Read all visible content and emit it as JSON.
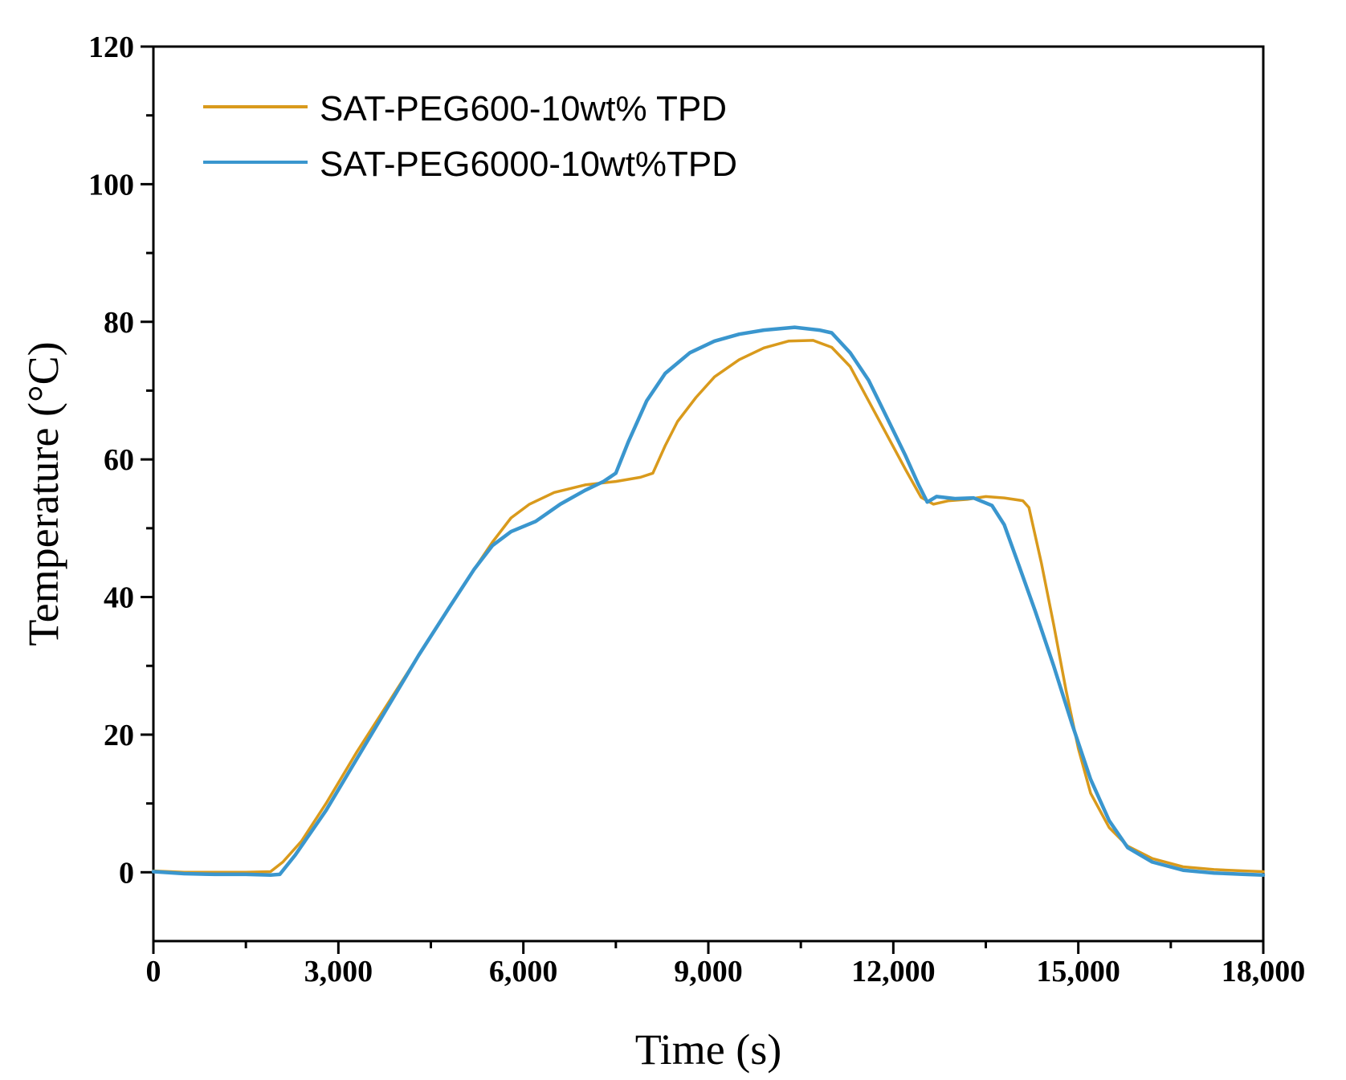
{
  "chart_data": {
    "type": "line",
    "xlabel": "Time (s)",
    "ylabel": "Temperature (°C)",
    "xlim": [
      0,
      18000
    ],
    "ylim": [
      -10,
      120
    ],
    "xticks": [
      0,
      3000,
      6000,
      9000,
      12000,
      15000,
      18000
    ],
    "xtick_labels": [
      "0",
      "3,000",
      "6,000",
      "9,000",
      "12,000",
      "15,000",
      "18,000"
    ],
    "yticks": [
      0,
      20,
      40,
      60,
      80,
      100,
      120
    ],
    "ytick_labels": [
      "0",
      "20",
      "40",
      "60",
      "80",
      "100",
      "120"
    ],
    "legend_position": "top-left",
    "series": [
      {
        "name": "SAT-PEG600-10wt% TPD",
        "color": "#D99A1C",
        "points": [
          [
            0,
            0.2
          ],
          [
            500,
            0.0
          ],
          [
            1000,
            0.0
          ],
          [
            1500,
            0.0
          ],
          [
            1900,
            0.1
          ],
          [
            2100,
            1.5
          ],
          [
            2400,
            4.5
          ],
          [
            2800,
            10.0
          ],
          [
            3300,
            17.5
          ],
          [
            3800,
            24.5
          ],
          [
            4300,
            31.5
          ],
          [
            4800,
            38.5
          ],
          [
            5200,
            44.0
          ],
          [
            5500,
            48.0
          ],
          [
            5800,
            51.5
          ],
          [
            6100,
            53.5
          ],
          [
            6500,
            55.2
          ],
          [
            7000,
            56.3
          ],
          [
            7500,
            56.8
          ],
          [
            7900,
            57.4
          ],
          [
            8100,
            58.0
          ],
          [
            8300,
            62.0
          ],
          [
            8500,
            65.5
          ],
          [
            8800,
            69.0
          ],
          [
            9100,
            72.0
          ],
          [
            9500,
            74.5
          ],
          [
            9900,
            76.2
          ],
          [
            10300,
            77.2
          ],
          [
            10700,
            77.3
          ],
          [
            11000,
            76.3
          ],
          [
            11300,
            73.5
          ],
          [
            11600,
            68.5
          ],
          [
            11900,
            63.5
          ],
          [
            12200,
            58.5
          ],
          [
            12450,
            54.5
          ],
          [
            12650,
            53.5
          ],
          [
            12900,
            54.0
          ],
          [
            13200,
            54.2
          ],
          [
            13500,
            54.6
          ],
          [
            13800,
            54.4
          ],
          [
            14100,
            54.0
          ],
          [
            14200,
            53.0
          ],
          [
            14400,
            45.0
          ],
          [
            14600,
            36.0
          ],
          [
            14800,
            26.5
          ],
          [
            15000,
            18.0
          ],
          [
            15200,
            11.5
          ],
          [
            15500,
            6.5
          ],
          [
            15800,
            3.8
          ],
          [
            16200,
            2.0
          ],
          [
            16700,
            0.8
          ],
          [
            17200,
            0.4
          ],
          [
            17700,
            0.2
          ],
          [
            18000,
            0.1
          ]
        ]
      },
      {
        "name": "SAT-PEG6000-10wt%TPD",
        "color": "#3A96CE",
        "points": [
          [
            0,
            0.1
          ],
          [
            500,
            -0.2
          ],
          [
            1000,
            -0.3
          ],
          [
            1500,
            -0.3
          ],
          [
            1900,
            -0.4
          ],
          [
            2050,
            -0.3
          ],
          [
            2300,
            2.5
          ],
          [
            2800,
            9.0
          ],
          [
            3300,
            16.5
          ],
          [
            3800,
            24.0
          ],
          [
            4300,
            31.5
          ],
          [
            4800,
            38.5
          ],
          [
            5200,
            44.0
          ],
          [
            5500,
            47.5
          ],
          [
            5800,
            49.5
          ],
          [
            6200,
            51.0
          ],
          [
            6600,
            53.5
          ],
          [
            7000,
            55.5
          ],
          [
            7300,
            56.8
          ],
          [
            7500,
            58.0
          ],
          [
            7700,
            62.5
          ],
          [
            8000,
            68.5
          ],
          [
            8300,
            72.5
          ],
          [
            8700,
            75.5
          ],
          [
            9100,
            77.2
          ],
          [
            9500,
            78.2
          ],
          [
            9900,
            78.8
          ],
          [
            10400,
            79.2
          ],
          [
            10800,
            78.8
          ],
          [
            11000,
            78.4
          ],
          [
            11300,
            75.5
          ],
          [
            11600,
            71.5
          ],
          [
            11900,
            66.0
          ],
          [
            12200,
            60.5
          ],
          [
            12400,
            56.5
          ],
          [
            12550,
            53.8
          ],
          [
            12700,
            54.6
          ],
          [
            13000,
            54.3
          ],
          [
            13300,
            54.4
          ],
          [
            13600,
            53.3
          ],
          [
            13800,
            50.5
          ],
          [
            14000,
            45.5
          ],
          [
            14300,
            38.0
          ],
          [
            14600,
            30.0
          ],
          [
            14900,
            21.5
          ],
          [
            15200,
            13.5
          ],
          [
            15500,
            7.5
          ],
          [
            15800,
            3.6
          ],
          [
            16200,
            1.5
          ],
          [
            16700,
            0.3
          ],
          [
            17200,
            -0.1
          ],
          [
            17700,
            -0.3
          ],
          [
            18000,
            -0.4
          ]
        ]
      }
    ]
  }
}
